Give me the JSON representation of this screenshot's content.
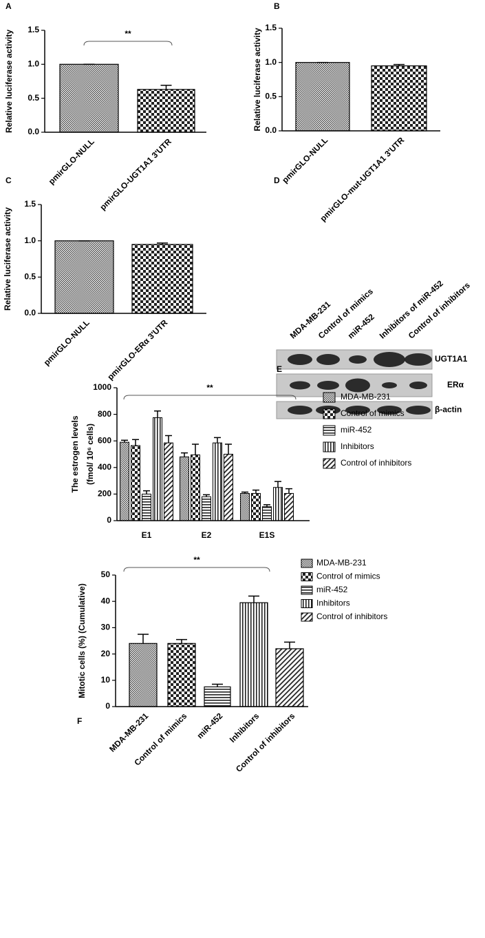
{
  "chart_data": [
    {
      "type": "bar",
      "label": "A",
      "ylabel": "Relative luciferase activity",
      "categories": [
        "pmirGLO-NULL",
        "pmirGLO-UGT1A1 3'UTR"
      ],
      "values": [
        1.0,
        0.63
      ],
      "errors": [
        0,
        0.06
      ],
      "ylim": [
        0,
        1.5
      ],
      "yticks": [
        {
          "value": 0,
          "label": "0.0"
        },
        0.5,
        {
          "value": 1,
          "label": "1.0"
        },
        1.5
      ],
      "annotation": "**"
    },
    {
      "type": "bar",
      "label": "B",
      "ylabel": "Relative luciferase activity",
      "categories": [
        "pmirGLO-NULL",
        "pmirGLO-mut-UGT1A1 3'UTR"
      ],
      "values": [
        1.0,
        0.95
      ],
      "errors": [
        0,
        0.02
      ],
      "ylim": [
        0,
        1.5
      ],
      "yticks": [
        {
          "value": 0,
          "label": "0.0"
        },
        0.5,
        {
          "value": 1,
          "label": "1.0"
        },
        1.5
      ]
    },
    {
      "type": "bar",
      "label": "C",
      "ylabel": "Relative luciferase activity",
      "categories": [
        "pmirGLO-NULL",
        "pmirGLO-ERα 3'UTR"
      ],
      "values": [
        1.0,
        0.95
      ],
      "errors": [
        0,
        0.02
      ],
      "ylim": [
        0,
        1.5
      ],
      "yticks": [
        {
          "value": 0,
          "label": "0.0"
        },
        0.5,
        {
          "value": 1,
          "label": "1.0"
        },
        1.5
      ]
    },
    {
      "type": "blot",
      "label": "D",
      "lanes": [
        "MDA-MB-231",
        "Control of mimics",
        "miR-452",
        "Inhibitors of miR-452",
        "Control of inhibitors"
      ],
      "bands": [
        "UGT1A1",
        "ERα",
        "β-actin"
      ]
    },
    {
      "type": "grouped_bar",
      "label": "E",
      "ylabel": [
        "The estrogen levels",
        "(fmol/ 10⁶ cells)"
      ],
      "categories": [
        "E1",
        "E2",
        "E1S"
      ],
      "series": [
        {
          "name": "MDA-MB-231",
          "values": [
            590,
            480,
            205
          ],
          "errors": [
            15,
            30,
            10
          ]
        },
        {
          "name": "Control of mimics",
          "values": [
            565,
            495,
            205
          ],
          "errors": [
            45,
            80,
            25
          ]
        },
        {
          "name": "miR-452",
          "values": [
            200,
            180,
            105
          ],
          "errors": [
            25,
            15,
            15
          ]
        },
        {
          "name": "Inhibitors",
          "values": [
            775,
            585,
            250
          ],
          "errors": [
            50,
            40,
            45
          ]
        },
        {
          "name": "Control of inhibitors",
          "values": [
            585,
            500,
            205
          ],
          "errors": [
            55,
            75,
            35
          ]
        }
      ],
      "ylim": [
        0,
        1000
      ],
      "yticks": [
        0,
        200,
        400,
        600,
        800,
        1000
      ],
      "annotation": "**"
    },
    {
      "type": "bar",
      "label": "F",
      "ylabel": "Mitotic cells (%) (Cumulative)",
      "categories": [
        "MDA-MB-231",
        "Control of mimics",
        "miR-452",
        "Inhibitors",
        "Control of inhibitors"
      ],
      "values": [
        24,
        24,
        7.5,
        39.5,
        22
      ],
      "errors": [
        3.5,
        1.5,
        1,
        2.5,
        2.5
      ],
      "ylim": [
        0,
        50
      ],
      "yticks": [
        0,
        10,
        20,
        30,
        40,
        50
      ],
      "annotation": "**",
      "legend": true
    }
  ]
}
